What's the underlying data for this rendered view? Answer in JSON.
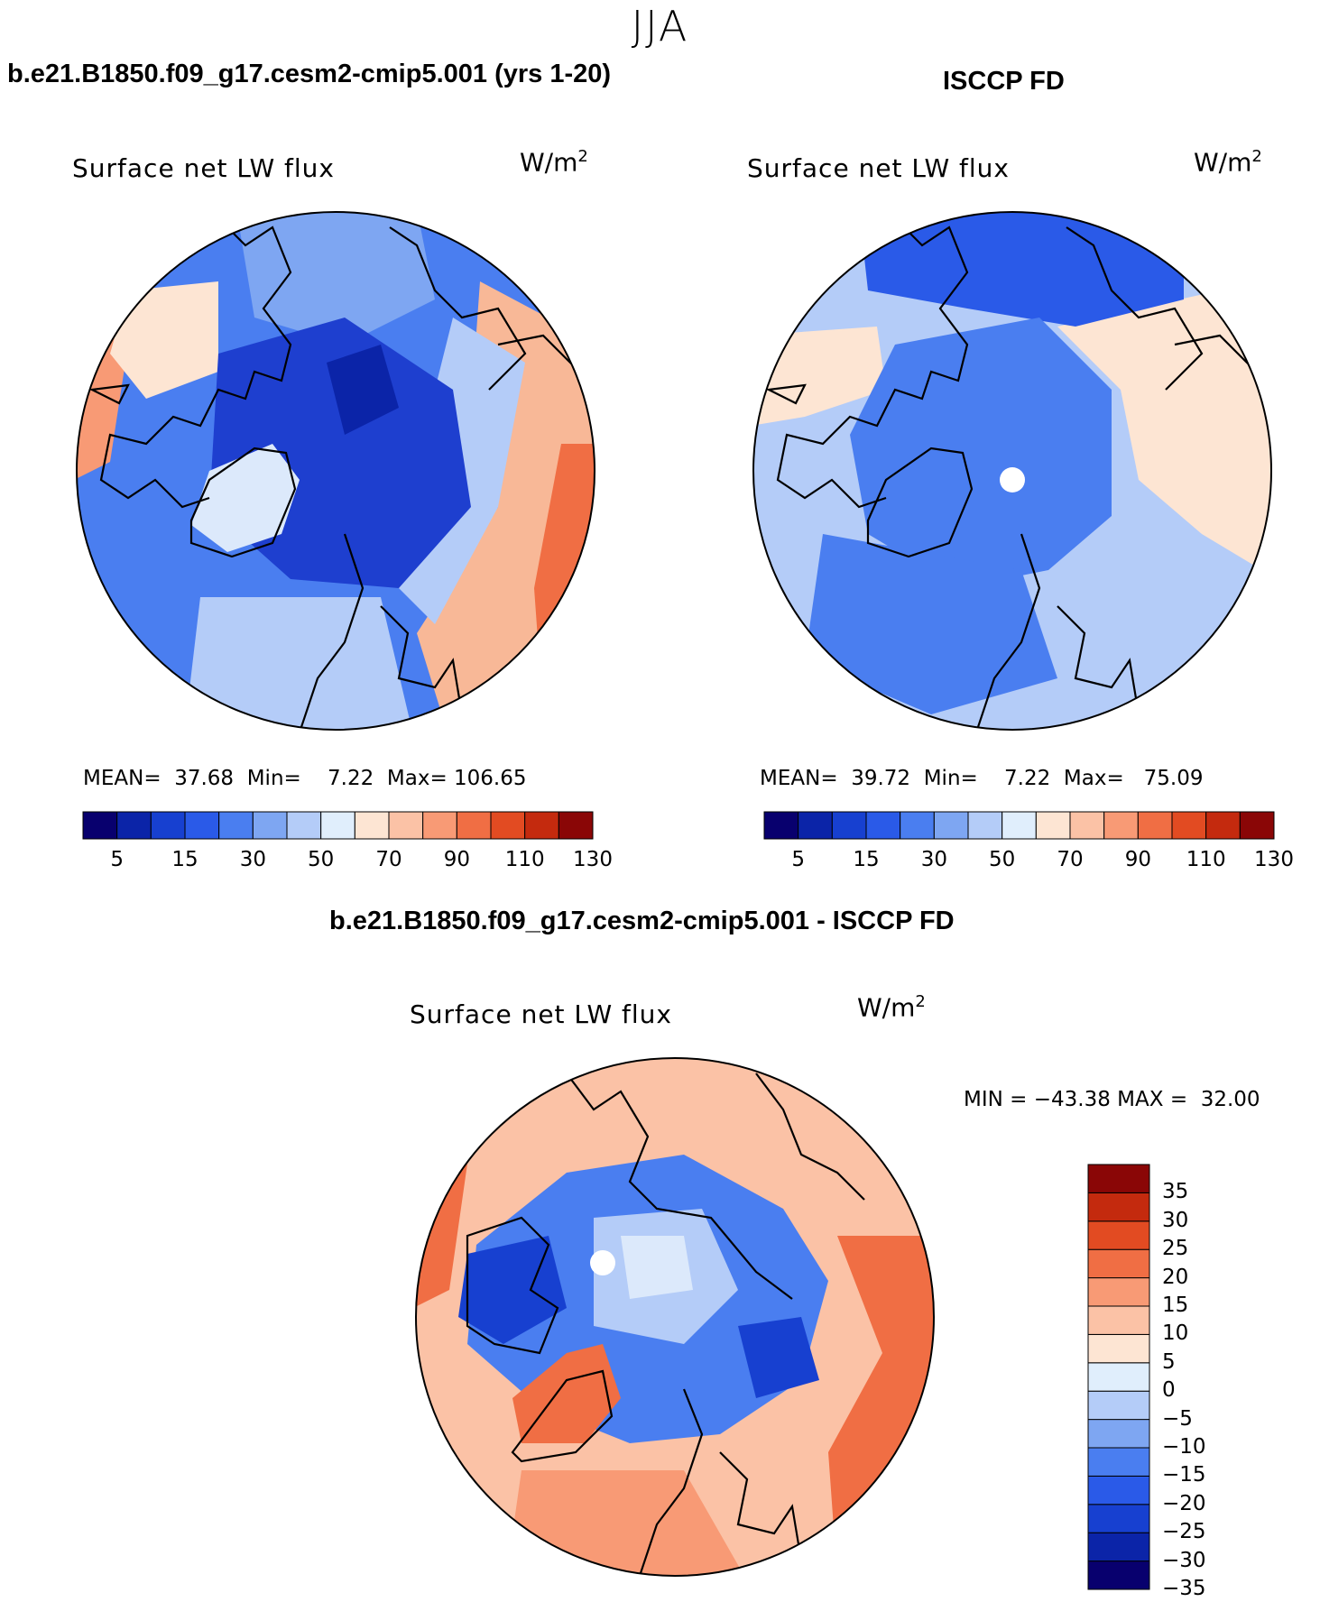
{
  "suptitle": "JJA",
  "panels": [
    {
      "title": "b.e21.B1850.f09_g17.cesm2-cmip5.001 (yrs 1-20)",
      "label": "Surface net LW flux",
      "units": "W/m",
      "units_sup": "2",
      "stats": {
        "mean_label": "MEAN=",
        "mean": "37.68",
        "min_label": "Min=",
        "min": "7.22",
        "max_label": "Max=",
        "max": "106.65"
      }
    },
    {
      "title": "ISCCP FD",
      "label": "Surface net LW flux",
      "units": "W/m",
      "units_sup": "2",
      "stats": {
        "mean_label": "MEAN=",
        "mean": "39.72",
        "min_label": "Min=",
        "min": "7.22",
        "max_label": "Max=",
        "max": "75.09"
      }
    },
    {
      "title": "b.e21.B1850.f09_g17.cesm2-cmip5.001 - ISCCP FD",
      "label": "Surface net LW flux",
      "units": "W/m",
      "units_sup": "2",
      "stats": {
        "min_label": "MIN =",
        "min": "−43.38",
        "max_label": "MAX =",
        "max": "32.00"
      }
    }
  ],
  "abs_colorbar": {
    "colors": [
      "#08006e",
      "#0b24a8",
      "#1740d0",
      "#2a5ae8",
      "#4a7ef0",
      "#7ea6f2",
      "#b4ccf8",
      "#e0eefc",
      "#fde5d3",
      "#fbc2a6",
      "#f89a75",
      "#f06e44",
      "#e24b22",
      "#c42a0e",
      "#8a0606"
    ],
    "tick_labels": [
      "5",
      "15",
      "30",
      "50",
      "70",
      "90",
      "110",
      "130"
    ]
  },
  "diff_colorbar": {
    "colors": [
      "#08006e",
      "#0b24a8",
      "#1740d0",
      "#2a5ae8",
      "#4a7ef0",
      "#7ea6f2",
      "#b4ccf8",
      "#e0eefc",
      "#fde5d3",
      "#fbc2a6",
      "#f89a75",
      "#f06e44",
      "#e24b22",
      "#c42a0e",
      "#8a0606"
    ],
    "tick_labels": [
      "35",
      "30",
      "25",
      "20",
      "15",
      "10",
      "5",
      "0",
      "−5",
      "−10",
      "−15",
      "−20",
      "−25",
      "−30",
      "−35"
    ]
  },
  "map_colors": {
    "deep": "#1e3fcf",
    "mid": "#3f6fe6",
    "light": "#7aa2f0",
    "pale": "#b8cff8",
    "ice": "#dce9fb",
    "cream": "#fbe3d4",
    "salmon": "#f8b897",
    "orange": "#f2824f",
    "red": "#e2552a",
    "coast": "#000000"
  }
}
